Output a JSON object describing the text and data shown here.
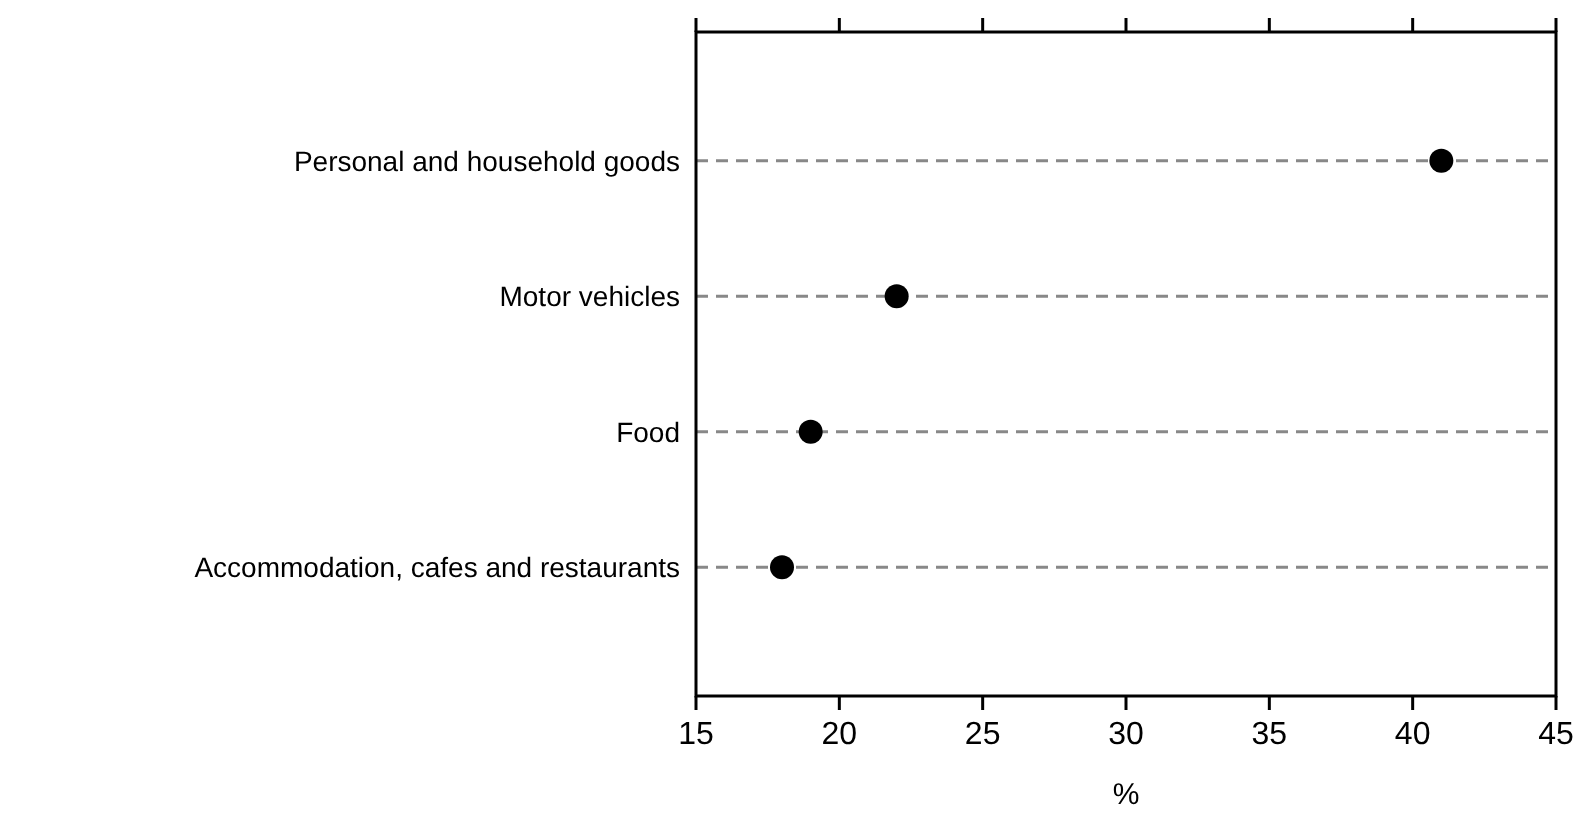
{
  "chart_data": {
    "type": "scatter",
    "categories": [
      "Personal and household goods",
      "Motor vehicles",
      "Food",
      "Accommodation, cafes and restaurants"
    ],
    "orientation": "horizontal",
    "values": [
      41,
      22,
      19,
      18
    ],
    "color": "#000000",
    "xlim": [
      15,
      45
    ],
    "xticks": [
      15,
      20,
      25,
      30,
      35,
      40,
      45
    ],
    "xlabel": "%",
    "grid": "y",
    "marker": "circle"
  }
}
